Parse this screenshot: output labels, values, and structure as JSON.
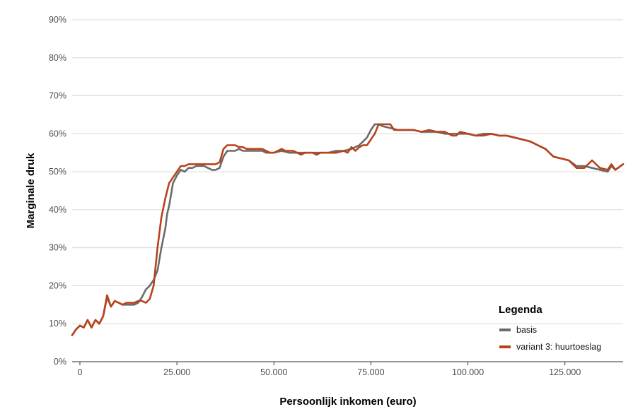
{
  "chart_data": {
    "type": "line",
    "xlabel": "Persoonlijk inkomen (euro)",
    "ylabel": "Marginale druk",
    "xlim": [
      -2000,
      140000
    ],
    "ylim": [
      0,
      90
    ],
    "x_ticks": [
      0,
      25000,
      50000,
      75000,
      100000,
      125000
    ],
    "x_tick_labels": [
      "0",
      "25.000",
      "50.000",
      "75.000",
      "100.000",
      "125.000"
    ],
    "y_ticks": [
      0,
      10,
      20,
      30,
      40,
      50,
      60,
      70,
      80,
      90
    ],
    "y_tick_labels": [
      "0%",
      "10%",
      "20%",
      "30%",
      "40%",
      "50%",
      "60%",
      "70%",
      "80%",
      "90%"
    ],
    "grid": "horizontal",
    "legend": {
      "title": "Legenda",
      "position": "bottom-right",
      "entries": [
        "basis",
        "variant 3: huurtoeslag"
      ]
    },
    "series": [
      {
        "name": "basis",
        "color": "#6b6b6b",
        "x": [
          -2000,
          -1000,
          0,
          1000,
          2000,
          3000,
          4000,
          5000,
          6000,
          7000,
          8000,
          9000,
          10000,
          11000,
          12000,
          13000,
          14000,
          15000,
          16000,
          17000,
          18000,
          19000,
          20000,
          21000,
          22000,
          22500,
          23000,
          24000,
          25000,
          26000,
          27000,
          28000,
          29000,
          30000,
          31000,
          32000,
          33000,
          34000,
          35000,
          36000,
          37000,
          38000,
          39000,
          40000,
          41000,
          42000,
          43000,
          44000,
          45000,
          46000,
          47000,
          48000,
          49000,
          50000,
          52000,
          54000,
          56000,
          58000,
          60000,
          62000,
          64000,
          66000,
          68000,
          70000,
          72000,
          74000,
          75000,
          76000,
          77000,
          78000,
          80000,
          82000,
          84000,
          86000,
          88000,
          90000,
          92000,
          94000,
          96000,
          98000,
          100000,
          102000,
          104000,
          106000,
          108000,
          110000,
          112000,
          114000,
          116000,
          118000,
          120000,
          122000,
          124000,
          126000,
          128000,
          130000,
          132000,
          134000,
          136000,
          137000,
          138000,
          140000
        ],
        "y": [
          7.0,
          8.5,
          9.5,
          9.0,
          11.0,
          9.0,
          11.0,
          10.0,
          12.0,
          17.0,
          14.5,
          16.0,
          15.5,
          15.0,
          15.0,
          15.0,
          15.0,
          15.5,
          17.0,
          19.0,
          20.0,
          21.5,
          24.0,
          30.0,
          35.0,
          39.0,
          41.0,
          47.0,
          49.0,
          50.5,
          50.0,
          51.0,
          51.0,
          51.5,
          51.5,
          51.5,
          51.0,
          50.5,
          50.5,
          51.0,
          54.0,
          55.5,
          55.5,
          55.5,
          56.0,
          55.5,
          55.5,
          55.5,
          55.5,
          55.5,
          55.5,
          55.0,
          55.0,
          55.0,
          55.5,
          55.0,
          55.0,
          55.0,
          55.0,
          55.0,
          55.0,
          55.5,
          55.5,
          56.0,
          57.0,
          59.0,
          61.0,
          62.5,
          62.5,
          62.0,
          61.5,
          61.0,
          61.0,
          61.0,
          60.5,
          60.5,
          60.5,
          60.0,
          60.0,
          60.0,
          60.0,
          59.5,
          60.0,
          60.0,
          59.5,
          59.5,
          59.0,
          58.5,
          58.0,
          57.0,
          56.0,
          54.0,
          53.5,
          53.0,
          51.5,
          51.5,
          51.0,
          50.5,
          50.0,
          51.5,
          50.5,
          52.0
        ]
      },
      {
        "name": "variant 3: huurtoeslag",
        "color": "#b8421a",
        "x": [
          -2000,
          -1000,
          0,
          1000,
          2000,
          3000,
          4000,
          5000,
          6000,
          7000,
          8000,
          9000,
          10000,
          11000,
          12000,
          13000,
          14000,
          15000,
          16000,
          17000,
          18000,
          19000,
          20000,
          21000,
          22000,
          23000,
          24000,
          25000,
          26000,
          27000,
          28000,
          29000,
          30000,
          31000,
          32000,
          33000,
          34000,
          35000,
          36000,
          37000,
          38000,
          39000,
          40000,
          41000,
          42000,
          43000,
          44000,
          45000,
          46000,
          47000,
          48000,
          49000,
          50000,
          51000,
          52000,
          53000,
          54000,
          55000,
          56000,
          57000,
          58000,
          59000,
          60000,
          61000,
          62000,
          64000,
          66000,
          68000,
          69000,
          70000,
          71000,
          72000,
          73000,
          74000,
          75000,
          76000,
          77000,
          78000,
          80000,
          81000,
          82000,
          83000,
          84000,
          86000,
          88000,
          90000,
          92000,
          94000,
          96000,
          97000,
          98000,
          100000,
          102000,
          104000,
          106000,
          108000,
          110000,
          112000,
          114000,
          116000,
          118000,
          120000,
          122000,
          124000,
          126000,
          128000,
          130000,
          132000,
          134000,
          136000,
          137000,
          138000,
          140000
        ],
        "y": [
          7.0,
          8.5,
          9.5,
          9.0,
          11.0,
          9.0,
          11.0,
          10.0,
          12.0,
          17.5,
          14.5,
          16.0,
          15.5,
          15.0,
          15.5,
          15.5,
          15.5,
          16.0,
          16.0,
          15.5,
          16.5,
          20.0,
          30.0,
          38.0,
          43.0,
          47.0,
          48.5,
          50.0,
          51.5,
          51.5,
          52.0,
          52.0,
          52.0,
          52.0,
          52.0,
          52.0,
          52.0,
          52.0,
          52.5,
          56.0,
          57.0,
          57.0,
          57.0,
          56.5,
          56.5,
          56.0,
          56.0,
          56.0,
          56.0,
          56.0,
          55.5,
          55.0,
          55.0,
          55.5,
          56.0,
          55.5,
          55.5,
          55.5,
          55.0,
          54.5,
          55.0,
          55.0,
          55.0,
          54.5,
          55.0,
          55.0,
          55.0,
          55.5,
          55.0,
          56.5,
          55.5,
          56.5,
          57.0,
          57.0,
          58.5,
          60.0,
          62.5,
          62.5,
          62.5,
          61.0,
          61.0,
          61.0,
          61.0,
          61.0,
          60.5,
          61.0,
          60.5,
          60.5,
          59.5,
          59.5,
          60.5,
          60.0,
          59.5,
          59.5,
          60.0,
          59.5,
          59.5,
          59.0,
          58.5,
          58.0,
          57.0,
          56.0,
          54.0,
          53.5,
          53.0,
          51.0,
          51.0,
          53.0,
          51.0,
          50.5,
          52.0,
          50.5,
          52.0
        ]
      }
    ]
  }
}
